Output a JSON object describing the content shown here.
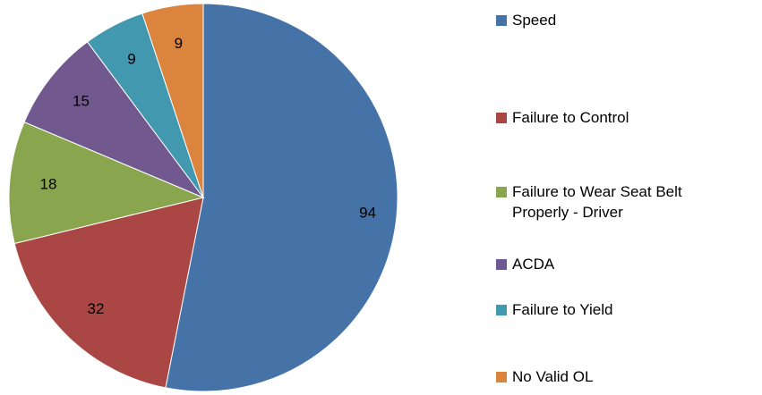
{
  "chart_data": {
    "type": "pie",
    "categories": [
      "Speed",
      "Failure to Control",
      "Failure to Wear Seat Belt Properly - Driver",
      "ACDA",
      "Failure to Yield",
      "No Valid OL"
    ],
    "values": [
      94,
      32,
      18,
      15,
      9,
      9
    ],
    "colors": [
      "#4572a7",
      "#aa4643",
      "#89a54e",
      "#71588f",
      "#4198af",
      "#db843d"
    ],
    "legend": "right"
  }
}
